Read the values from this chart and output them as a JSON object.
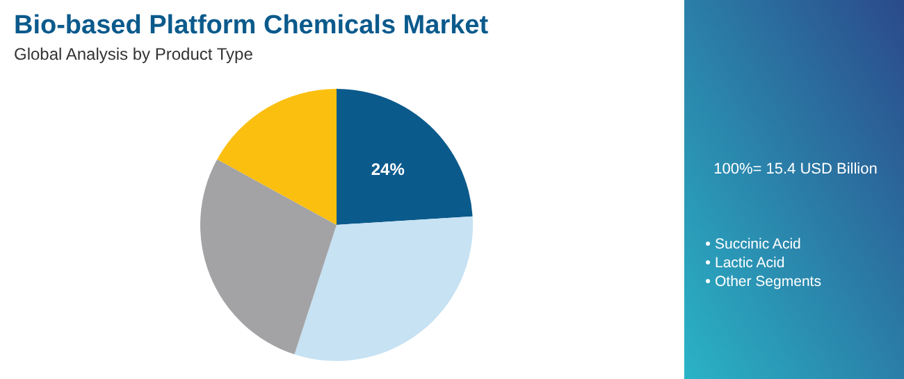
{
  "chart_data": {
    "type": "pie",
    "title": "Bio-based Platform Chemicals Market",
    "subtitle": "Global Analysis by Product Type",
    "categories": [
      null,
      null,
      null,
      null
    ],
    "values": [
      24,
      31,
      28,
      17
    ],
    "colors": [
      "#0b5a8c",
      "#c6e2f3",
      "#a3a3a6",
      "#fbbf10"
    ],
    "value_labels": [
      "24%",
      null,
      null,
      null
    ],
    "annotations": [
      "100%= 15.4 USD Billion",
      "Succinic Acid",
      "Lactic Acid",
      "Other Segments"
    ]
  }
}
